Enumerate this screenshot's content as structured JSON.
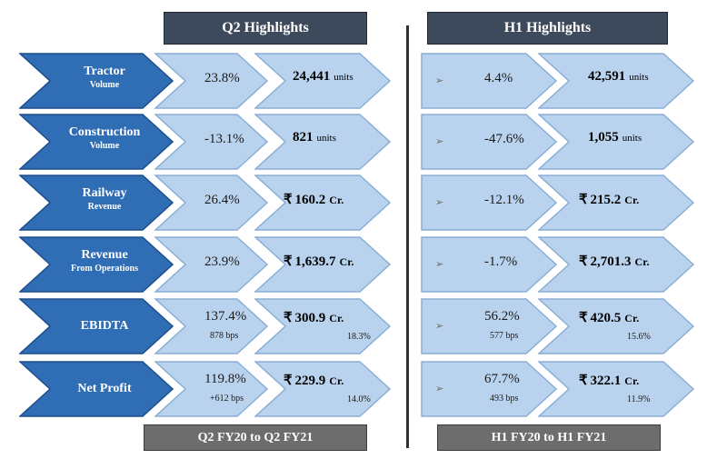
{
  "headers": {
    "q2": "Q2 Highlights",
    "h1": "H1 Highlights"
  },
  "footers": {
    "q2": "Q2 FY20 to Q2 FY21",
    "h1": "H1 FY20 to H1 FY21"
  },
  "bullet_icon": "arrow-bullet",
  "colors": {
    "label_chevron": "#2f6db5",
    "light_chevron": "#b9d3ee",
    "header_bg": "#3d4a5c",
    "footer_bg": "#6d6d6d"
  },
  "rows": [
    {
      "label": "Tractor",
      "sublabel": "Volume",
      "q2": {
        "growth": "23.8%",
        "growth_sub": "",
        "value": "24,441",
        "unit": "units",
        "currency": "",
        "value_sub": ""
      },
      "h1": {
        "growth": "4.4%",
        "growth_sub": "",
        "value": "42,591",
        "unit": "units",
        "currency": "",
        "value_sub": ""
      }
    },
    {
      "label": "Construction",
      "sublabel": "Volume",
      "q2": {
        "growth": "-13.1%",
        "growth_sub": "",
        "value": "821",
        "unit": "units",
        "currency": "",
        "value_sub": ""
      },
      "h1": {
        "growth": "-47.6%",
        "growth_sub": "",
        "value": "1,055",
        "unit": "units",
        "currency": "",
        "value_sub": ""
      }
    },
    {
      "label": "Railway",
      "sublabel": "Revenue",
      "q2": {
        "growth": "26.4%",
        "growth_sub": "",
        "value": "160.2",
        "unit": "Cr.",
        "currency": "₹",
        "value_sub": ""
      },
      "h1": {
        "growth": "-12.1%",
        "growth_sub": "",
        "value": "215.2",
        "unit": "Cr.",
        "currency": "₹",
        "value_sub": ""
      }
    },
    {
      "label": "Revenue",
      "sublabel": "From Operations",
      "q2": {
        "growth": "23.9%",
        "growth_sub": "",
        "value": "1,639.7",
        "unit": "Cr.",
        "currency": "₹",
        "value_sub": ""
      },
      "h1": {
        "growth": "-1.7%",
        "growth_sub": "",
        "value": "2,701.3",
        "unit": "Cr.",
        "currency": "₹",
        "value_sub": ""
      }
    },
    {
      "label": "EBIDTA",
      "sublabel": "",
      "q2": {
        "growth": "137.4%",
        "growth_sub": "878 bps",
        "value": "300.9",
        "unit": "Cr.",
        "currency": "₹",
        "value_sub": "18.3%"
      },
      "h1": {
        "growth": "56.2%",
        "growth_sub": "577 bps",
        "value": "420.5",
        "unit": "Cr.",
        "currency": "₹",
        "value_sub": "15.6%"
      }
    },
    {
      "label": "Net Profit",
      "sublabel": "",
      "q2": {
        "growth": "119.8%",
        "growth_sub": "+612 bps",
        "value": "229.9",
        "unit": "Cr.",
        "currency": "₹",
        "value_sub": "14.0%"
      },
      "h1": {
        "growth": "67.7%",
        "growth_sub": "493 bps",
        "value": "322.1",
        "unit": "Cr.",
        "currency": "₹",
        "value_sub": "11.9%"
      }
    }
  ]
}
